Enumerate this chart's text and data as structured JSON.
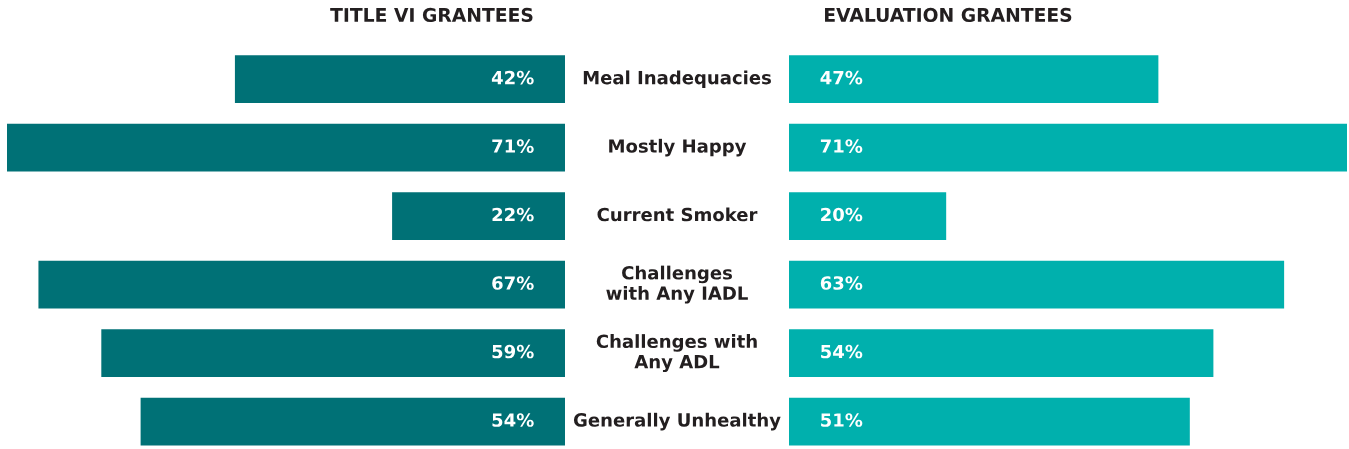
{
  "chart_data": [
    {
      "type": "bar",
      "orientation": "horizontal",
      "title": "TITLE VI GRANTEES",
      "categories": [
        "Meal Inadequacies",
        "Mostly Happy",
        "Current Smoker",
        "Challenges\nwith Any IADL",
        "Challenges with\nAny ADL",
        "Generally Unhealthy"
      ],
      "series": [
        {
          "color": "#007176",
          "values": [
            42,
            71,
            22,
            67,
            59,
            54
          ],
          "value_labels": [
            "42%",
            "71%",
            "22%",
            "67%",
            "59%",
            "54%"
          ]
        }
      ]
    },
    {
      "type": "bar",
      "orientation": "horizontal",
      "title": "EVALUATION GRANTEES",
      "series": [
        {
          "color": "#00b0ad",
          "values": [
            47,
            71,
            20,
            63,
            54,
            51
          ],
          "value_labels": [
            "47%",
            "71%",
            "20%",
            "63%",
            "54%",
            "51%"
          ]
        }
      ]
    }
  ]
}
